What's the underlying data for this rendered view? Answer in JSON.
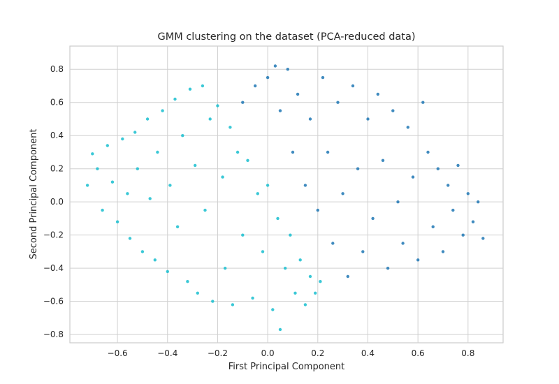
{
  "chart_data": {
    "type": "scatter",
    "title": "GMM clustering on the dataset (PCA-reduced data)",
    "xlabel": "First Principal Component",
    "ylabel": "Second Principal Component",
    "xlim": [
      -0.79,
      0.94
    ],
    "ylim": [
      -0.85,
      0.94
    ],
    "xticks": [
      -0.6,
      -0.4,
      -0.2,
      0.0,
      0.2,
      0.4,
      0.6,
      0.8
    ],
    "yticks": [
      -0.8,
      -0.6,
      -0.4,
      -0.2,
      0.0,
      0.2,
      0.4,
      0.6,
      0.8
    ],
    "xtick_labels": [
      "−0.6",
      "−0.4",
      "−0.2",
      "0.0",
      "0.2",
      "0.4",
      "0.6",
      "0.8"
    ],
    "ytick_labels": [
      "−0.8",
      "−0.6",
      "−0.4",
      "−0.2",
      "0.0",
      "0.2",
      "0.4",
      "0.6",
      "0.8"
    ],
    "grid": true,
    "legend": "none",
    "series": [
      {
        "color": "#17becf",
        "points": [
          [
            -0.72,
            0.1
          ],
          [
            -0.7,
            0.29
          ],
          [
            -0.68,
            0.2
          ],
          [
            -0.66,
            -0.05
          ],
          [
            -0.64,
            0.34
          ],
          [
            -0.62,
            0.12
          ],
          [
            -0.6,
            -0.12
          ],
          [
            -0.58,
            0.38
          ],
          [
            -0.56,
            0.05
          ],
          [
            -0.55,
            -0.22
          ],
          [
            -0.53,
            0.42
          ],
          [
            -0.52,
            0.2
          ],
          [
            -0.5,
            -0.3
          ],
          [
            -0.48,
            0.5
          ],
          [
            -0.47,
            0.02
          ],
          [
            -0.45,
            -0.35
          ],
          [
            -0.44,
            0.3
          ],
          [
            -0.42,
            0.55
          ],
          [
            -0.4,
            -0.42
          ],
          [
            -0.39,
            0.1
          ],
          [
            -0.37,
            0.62
          ],
          [
            -0.36,
            -0.15
          ],
          [
            -0.34,
            0.4
          ],
          [
            -0.32,
            -0.48
          ],
          [
            -0.31,
            0.68
          ],
          [
            -0.29,
            0.22
          ],
          [
            -0.28,
            -0.55
          ],
          [
            -0.26,
            0.7
          ],
          [
            -0.25,
            -0.05
          ],
          [
            -0.23,
            0.5
          ],
          [
            -0.22,
            -0.6
          ],
          [
            -0.2,
            0.58
          ],
          [
            -0.18,
            0.15
          ],
          [
            -0.17,
            -0.4
          ],
          [
            -0.15,
            0.45
          ],
          [
            -0.14,
            -0.62
          ],
          [
            -0.12,
            0.3
          ],
          [
            -0.1,
            -0.2
          ],
          [
            -0.08,
            0.25
          ],
          [
            -0.06,
            -0.58
          ],
          [
            -0.04,
            0.05
          ],
          [
            -0.02,
            -0.3
          ],
          [
            0.0,
            0.1
          ],
          [
            0.02,
            -0.65
          ],
          [
            0.04,
            -0.1
          ],
          [
            0.05,
            -0.77
          ],
          [
            0.07,
            -0.4
          ],
          [
            0.09,
            -0.2
          ],
          [
            0.11,
            -0.55
          ],
          [
            0.13,
            -0.35
          ],
          [
            0.15,
            -0.62
          ],
          [
            0.17,
            -0.45
          ],
          [
            0.19,
            -0.55
          ],
          [
            0.21,
            -0.48
          ]
        ]
      },
      {
        "color": "#1f77b4",
        "points": [
          [
            -0.1,
            0.6
          ],
          [
            -0.05,
            0.7
          ],
          [
            0.0,
            0.75
          ],
          [
            0.03,
            0.82
          ],
          [
            0.05,
            0.55
          ],
          [
            0.08,
            0.8
          ],
          [
            0.1,
            0.3
          ],
          [
            0.12,
            0.65
          ],
          [
            0.15,
            0.1
          ],
          [
            0.17,
            0.5
          ],
          [
            0.2,
            -0.05
          ],
          [
            0.22,
            0.75
          ],
          [
            0.24,
            0.3
          ],
          [
            0.26,
            -0.25
          ],
          [
            0.28,
            0.6
          ],
          [
            0.3,
            0.05
          ],
          [
            0.32,
            -0.45
          ],
          [
            0.34,
            0.7
          ],
          [
            0.36,
            0.2
          ],
          [
            0.38,
            -0.3
          ],
          [
            0.4,
            0.5
          ],
          [
            0.42,
            -0.1
          ],
          [
            0.44,
            0.65
          ],
          [
            0.46,
            0.25
          ],
          [
            0.48,
            -0.4
          ],
          [
            0.5,
            0.55
          ],
          [
            0.52,
            0.0
          ],
          [
            0.54,
            -0.25
          ],
          [
            0.56,
            0.45
          ],
          [
            0.58,
            0.15
          ],
          [
            0.6,
            -0.35
          ],
          [
            0.62,
            0.6
          ],
          [
            0.64,
            0.3
          ],
          [
            0.66,
            -0.15
          ],
          [
            0.68,
            0.2
          ],
          [
            0.7,
            -0.3
          ],
          [
            0.72,
            0.1
          ],
          [
            0.74,
            -0.05
          ],
          [
            0.76,
            0.22
          ],
          [
            0.78,
            -0.2
          ],
          [
            0.8,
            0.05
          ],
          [
            0.82,
            -0.12
          ],
          [
            0.84,
            0.0
          ],
          [
            0.86,
            -0.22
          ]
        ]
      }
    ]
  }
}
